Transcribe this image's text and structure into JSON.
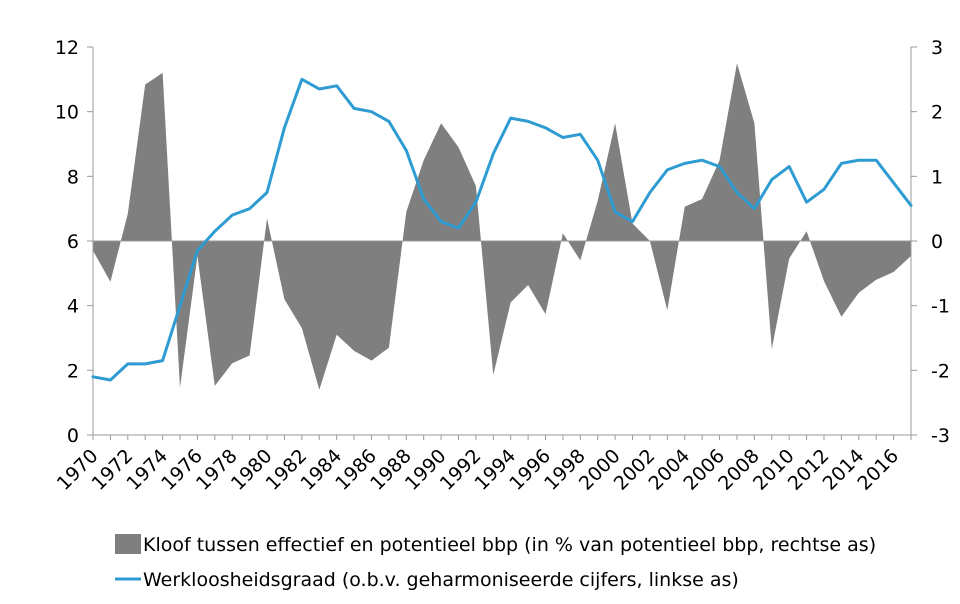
{
  "chart_data": {
    "type": "area+line",
    "x": [
      1970,
      1971,
      1972,
      1973,
      1974,
      1975,
      1976,
      1977,
      1978,
      1979,
      1980,
      1981,
      1982,
      1983,
      1984,
      1985,
      1986,
      1987,
      1988,
      1989,
      1990,
      1991,
      1992,
      1993,
      1994,
      1995,
      1996,
      1997,
      1998,
      1999,
      2000,
      2001,
      2002,
      2003,
      2004,
      2005,
      2006,
      2007,
      2008,
      2009,
      2010,
      2011,
      2012,
      2013,
      2014,
      2015,
      2016,
      2017
    ],
    "x_tick_labels": [
      "1970",
      "1972",
      "1974",
      "1976",
      "1978",
      "1980",
      "1982",
      "1984",
      "1986",
      "1988",
      "1990",
      "1992",
      "1994",
      "1996",
      "1998",
      "2000",
      "2002",
      "2004",
      "2006",
      "2008",
      "2010",
      "2012",
      "2014",
      "2016"
    ],
    "y_left": {
      "ticks": [
        "0",
        "2",
        "4",
        "6",
        "8",
        "10",
        "12"
      ],
      "lim": [
        0,
        12
      ]
    },
    "y_right": {
      "ticks": [
        "-3",
        "-2",
        "-1",
        "0",
        "1",
        "2",
        "3"
      ],
      "lim": [
        -3,
        3
      ]
    },
    "grid": false,
    "legend_position": "bottom",
    "series": [
      {
        "name": "Kloof tussen effectief en potentieel bbp (in % van potentieel bbp, rechtse as)",
        "type": "area",
        "axis": "right",
        "color": "#7f7f7f",
        "values": [
          -0.15,
          -0.63,
          0.42,
          2.42,
          2.6,
          -2.27,
          -0.23,
          -2.24,
          -1.89,
          -1.77,
          0.35,
          -0.9,
          -1.35,
          -2.3,
          -1.45,
          -1.7,
          -1.85,
          -1.65,
          0.45,
          1.25,
          1.82,
          1.45,
          0.85,
          -2.07,
          -0.95,
          -0.68,
          -1.13,
          0.12,
          -0.3,
          0.62,
          1.82,
          0.27,
          0.0,
          -1.07,
          0.53,
          0.65,
          1.25,
          2.75,
          1.82,
          -1.67,
          -0.27,
          0.15,
          -0.62,
          -1.17,
          -0.8,
          -0.6,
          -0.48,
          -0.23
        ]
      },
      {
        "name": "Werkloosheidsgraad (o.b.v. geharmoniseerde cijfers, linkse as)",
        "type": "line",
        "axis": "left",
        "color": "#2e9cd2",
        "values": [
          1.8,
          1.7,
          2.2,
          2.2,
          2.3,
          4.0,
          5.7,
          6.3,
          6.8,
          7.0,
          7.5,
          9.5,
          11.0,
          10.7,
          10.8,
          10.1,
          10.0,
          9.7,
          8.8,
          7.3,
          6.6,
          6.4,
          7.2,
          8.7,
          9.8,
          9.7,
          9.5,
          9.2,
          9.3,
          8.5,
          6.9,
          6.6,
          7.5,
          8.2,
          8.4,
          8.5,
          8.3,
          7.5,
          7.0,
          7.9,
          8.3,
          7.2,
          7.6,
          8.4,
          8.5,
          8.5,
          7.8,
          7.1
        ]
      }
    ]
  }
}
